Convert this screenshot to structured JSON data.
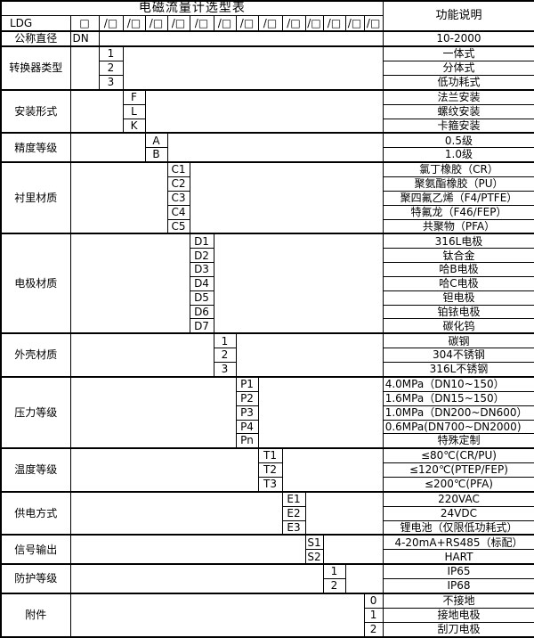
{
  "title": "电磁流量计选型表",
  "function_header": "功能说明",
  "model": {
    "prefix": "LDG",
    "box": "□",
    "slash_box": "/□",
    "positions": 13
  },
  "categories": [
    {
      "label": "公称直径",
      "code_col": 0,
      "options": [
        {
          "code": "DN",
          "desc": "10-2000"
        }
      ]
    },
    {
      "label": "转换器类型",
      "code_col": 1,
      "options": [
        {
          "code": "1",
          "desc": "一体式"
        },
        {
          "code": "2",
          "desc": "分体式"
        },
        {
          "code": "3",
          "desc": "低功耗式"
        }
      ]
    },
    {
      "label": "安装形式",
      "code_col": 2,
      "options": [
        {
          "code": "F",
          "desc": "法兰安装"
        },
        {
          "code": "L",
          "desc": "螺纹安装"
        },
        {
          "code": "K",
          "desc": "卡箍安装"
        }
      ]
    },
    {
      "label": "精度等级",
      "code_col": 3,
      "options": [
        {
          "code": "A",
          "desc": "0.5级"
        },
        {
          "code": "B",
          "desc": "1.0级"
        }
      ]
    },
    {
      "label": "衬里材质",
      "code_col": 4,
      "options": [
        {
          "code": "C1",
          "desc": "氯丁橡胶（CR）"
        },
        {
          "code": "C2",
          "desc": "聚氨酯橡胶（PU）"
        },
        {
          "code": "C3",
          "desc": "聚四氟乙烯（F4/PTFE）"
        },
        {
          "code": "C4",
          "desc": "特氟龙（F46/FEP）"
        },
        {
          "code": "C5",
          "desc": "共聚物（PFA）"
        }
      ]
    },
    {
      "label": "电极材质",
      "code_col": 5,
      "options": [
        {
          "code": "D1",
          "desc": "316L电极"
        },
        {
          "code": "D2",
          "desc": "钛合金"
        },
        {
          "code": "D3",
          "desc": "哈B电极"
        },
        {
          "code": "D4",
          "desc": "哈C电极"
        },
        {
          "code": "D5",
          "desc": "钽电极"
        },
        {
          "code": "D6",
          "desc": "铂铱电极"
        },
        {
          "code": "D7",
          "desc": "碳化钨"
        }
      ]
    },
    {
      "label": "外壳材质",
      "code_col": 6,
      "options": [
        {
          "code": "1",
          "desc": "碳钢"
        },
        {
          "code": "2",
          "desc": "304不锈钢"
        },
        {
          "code": "3",
          "desc": "316L不锈钢"
        }
      ]
    },
    {
      "label": "压力等级",
      "code_col": 7,
      "options": [
        {
          "code": "P1",
          "desc": "4.0MPa（DN10~150）",
          "align": "left"
        },
        {
          "code": "P2",
          "desc": "1.6MPa（DN15~150）",
          "align": "left"
        },
        {
          "code": "P3",
          "desc": "1.0MPa（DN200~DN600）",
          "align": "left"
        },
        {
          "code": "P4",
          "desc": "0.6MPa(DN700~DN2000)",
          "align": "left"
        },
        {
          "code": "Pn",
          "desc": "特殊定制"
        }
      ]
    },
    {
      "label": "温度等级",
      "code_col": 8,
      "options": [
        {
          "code": "T1",
          "desc": "≤80℃(CR/PU)"
        },
        {
          "code": "T2",
          "desc": "≤120℃(PTEP/FEP)"
        },
        {
          "code": "T3",
          "desc": "≤200℃(PFA)"
        }
      ]
    },
    {
      "label": "供电方式",
      "code_col": 9,
      "options": [
        {
          "code": "E1",
          "desc": "220VAC"
        },
        {
          "code": "E2",
          "desc": "24VDC"
        },
        {
          "code": "E3",
          "desc": "锂电池（仅限低功耗式）"
        }
      ]
    },
    {
      "label": "信号输出",
      "code_col": 10,
      "options": [
        {
          "code": "S1",
          "desc": "4-20mA+RS485（标配）"
        },
        {
          "code": "S2",
          "desc": "HART"
        }
      ]
    },
    {
      "label": "防护等级",
      "code_col": 11,
      "options": [
        {
          "code": "1",
          "desc": "IP65"
        },
        {
          "code": "2",
          "desc": "IP68"
        }
      ]
    },
    {
      "label": "附件",
      "code_col": 13,
      "options": [
        {
          "code": "0",
          "desc": "不接地"
        },
        {
          "code": "1",
          "desc": "接地电极"
        },
        {
          "code": "2",
          "desc": "刮刀电极"
        }
      ]
    }
  ]
}
